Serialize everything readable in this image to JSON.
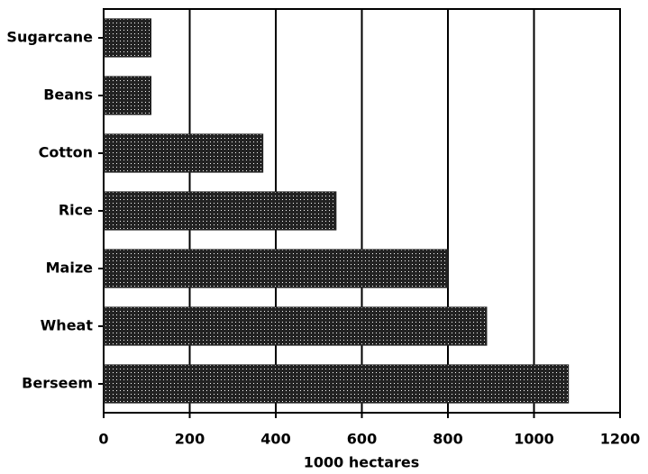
{
  "chart_data": {
    "type": "bar",
    "orientation": "horizontal",
    "x_label": "1000 hectares",
    "categories": [
      "Sugarcane",
      "Beans",
      "Cotton",
      "Rice",
      "Maize",
      "Wheat",
      "Berseem"
    ],
    "values": [
      110,
      110,
      370,
      540,
      800,
      890,
      1080
    ],
    "color": "#222222",
    "xlim": [
      0,
      1200
    ],
    "xticks": [
      0,
      200,
      400,
      600,
      800,
      1000,
      1200
    ],
    "grid": true
  }
}
